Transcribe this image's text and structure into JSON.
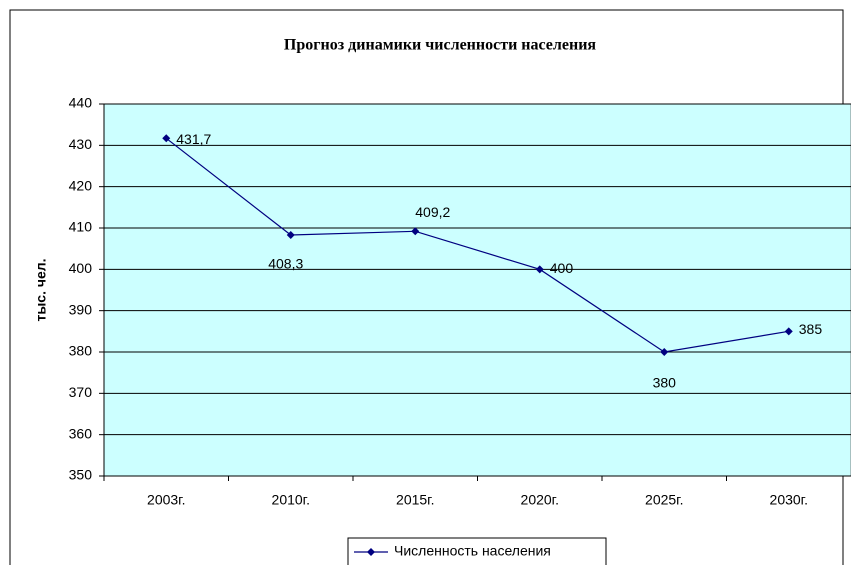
{
  "chart_data": {
    "type": "line",
    "title": "Прогноз динамики численности населения",
    "y_label": "тыс. чел.",
    "categories": [
      "2003г.",
      "2010г.",
      "2015г.",
      "2020г.",
      "2025г.",
      "2030г."
    ],
    "series": [
      {
        "name": "Численность населения",
        "color": "#000080",
        "values": [
          431.7,
          408.3,
          409.2,
          400,
          380,
          385
        ],
        "value_labels": [
          "431,7",
          "408,3",
          "409,2",
          "400",
          "380",
          "385"
        ]
      }
    ],
    "ylim": [
      350,
      440
    ],
    "yticks": [
      350,
      360,
      370,
      380,
      390,
      400,
      410,
      420,
      430,
      440
    ],
    "grid": true,
    "legend": "bottom",
    "plot_background": "#ccffff"
  }
}
